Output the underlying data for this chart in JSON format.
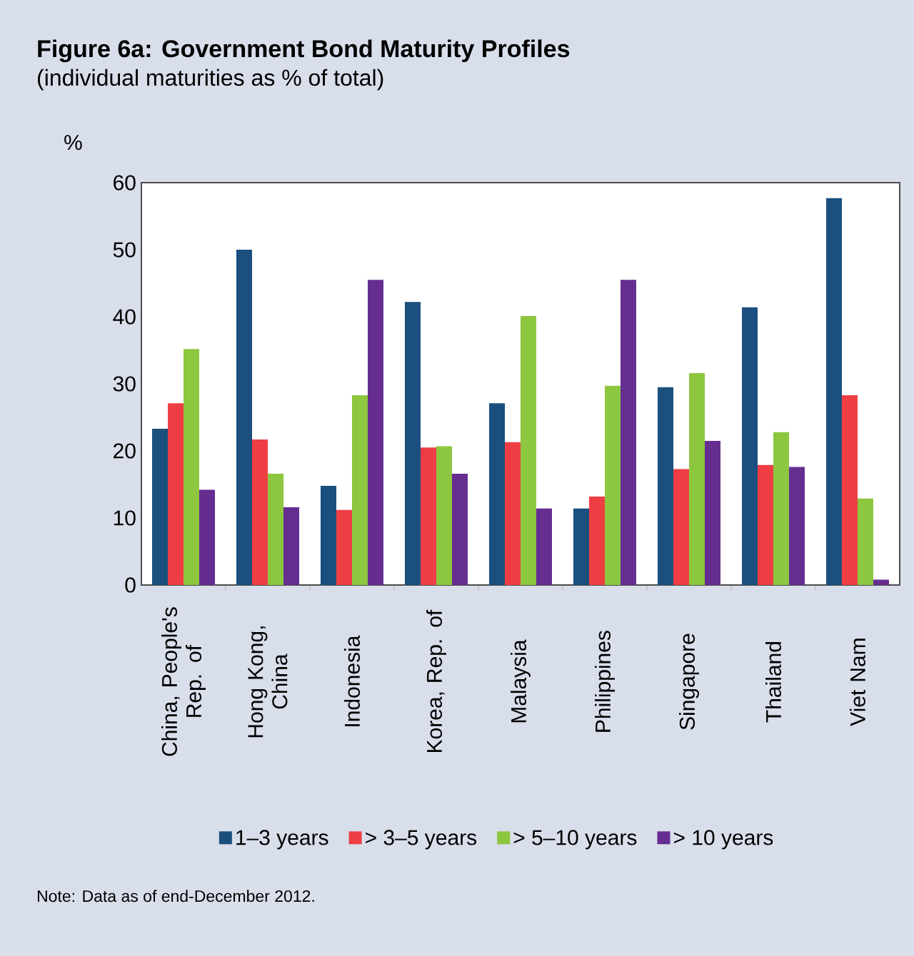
{
  "chart_data": {
    "type": "bar",
    "title": "Figure 6a: Government Bond Maturity Profiles",
    "subtitle": "(individual maturities as % of total)",
    "ylabel": "%",
    "categories": [
      "China, People's Rep. of",
      "Hong Kong, China",
      "Indonesia",
      "Korea, Rep. of",
      "Malaysia",
      "Philippines",
      "Singapore",
      "Thailand",
      "Viet Nam"
    ],
    "series": [
      {
        "name": "1–3 years",
        "color": "#1a4f7e",
        "values": [
          23.3,
          50.0,
          14.8,
          42.2,
          27.1,
          11.4,
          29.5,
          41.4,
          57.7
        ]
      },
      {
        "name": "> 3–5 years",
        "color": "#ee3e44",
        "values": [
          27.1,
          21.7,
          11.2,
          20.5,
          21.3,
          13.2,
          17.3,
          17.9,
          28.3
        ]
      },
      {
        "name": "> 5–10 years",
        "color": "#8dc63f",
        "values": [
          35.2,
          16.6,
          28.3,
          20.7,
          40.1,
          29.7,
          31.6,
          22.8,
          12.9
        ]
      },
      {
        "name": "> 10 years",
        "color": "#662d91",
        "values": [
          14.2,
          11.6,
          45.5,
          16.6,
          11.4,
          45.5,
          21.5,
          17.6,
          0.8
        ]
      }
    ],
    "ylim": [
      0,
      60
    ],
    "yticks": [
      0,
      10,
      20,
      30,
      40,
      50,
      60
    ],
    "legend": "bottom",
    "annotations": [
      "Note: Data as of end-December 2012."
    ]
  }
}
